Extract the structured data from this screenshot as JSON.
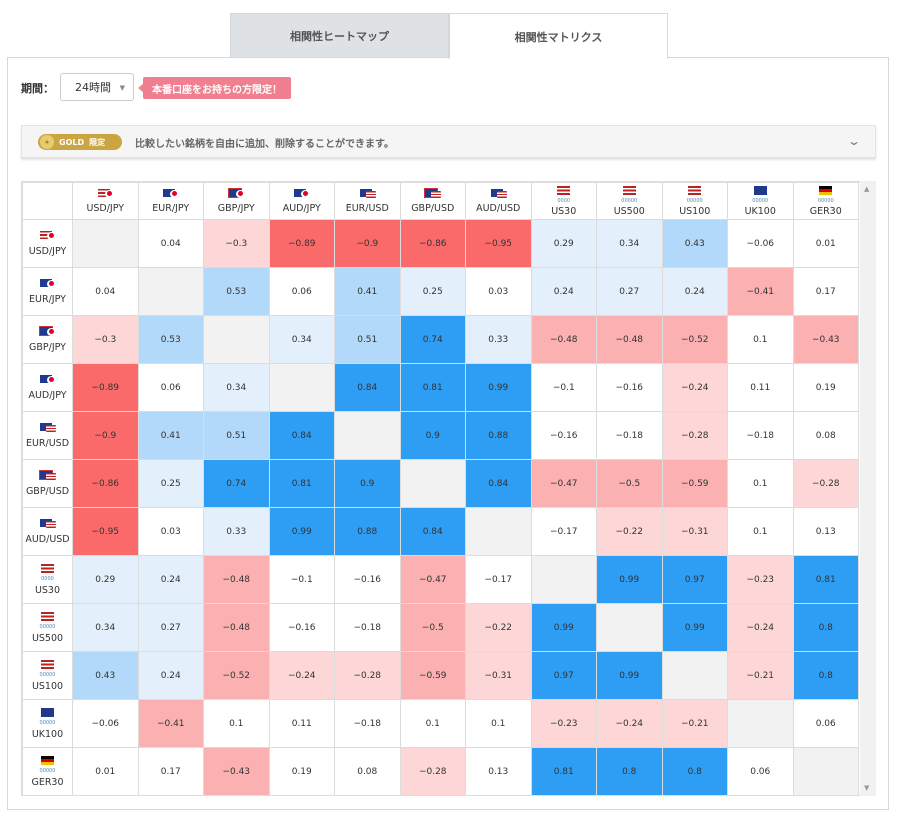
{
  "tabs": [
    {
      "label": "相関性ヒートマップ",
      "active": false
    },
    {
      "label": "相関性マトリクス",
      "active": true
    }
  ],
  "period": {
    "label": "期間：",
    "selected": "24時間"
  },
  "badge": "本番口座をお持ちの方限定！",
  "gold": {
    "pill": "GOLD",
    "pill_sub": "限定",
    "description": "比較したい銘柄を自由に追加、削除することができます。"
  },
  "colors": {
    "strong_neg": "#fa6a6a",
    "mid_neg": "#fbb1b1",
    "weak_neg": "#fdd7d7",
    "weak_pos": "#e3f0fc",
    "mid_pos": "#b2d9f9",
    "strong_pos": "#2e9ef5",
    "diag": "#f2f2f2"
  },
  "chart_data": {
    "type": "heatmap",
    "symbols": [
      "USD/JPY",
      "EUR/JPY",
      "GBP/JPY",
      "AUD/JPY",
      "EUR/USD",
      "GBP/USD",
      "AUD/USD",
      "US30",
      "US500",
      "US100",
      "UK100",
      "GER30"
    ],
    "index_sublabels": [
      "",
      "",
      "",
      "",
      "",
      "",
      "",
      "0000",
      "00000",
      "00000",
      "00000",
      "00000"
    ],
    "matrix": [
      [
        null,
        0.04,
        -0.3,
        -0.89,
        -0.9,
        -0.86,
        -0.95,
        0.29,
        0.34,
        0.43,
        -0.06,
        0.01
      ],
      [
        0.04,
        null,
        0.53,
        0.06,
        0.41,
        0.25,
        0.03,
        0.24,
        0.27,
        0.24,
        -0.41,
        0.17
      ],
      [
        -0.3,
        0.53,
        null,
        0.34,
        0.51,
        0.74,
        0.33,
        -0.48,
        -0.48,
        -0.52,
        0.1,
        -0.43
      ],
      [
        -0.89,
        0.06,
        0.34,
        null,
        0.84,
        0.81,
        0.99,
        -0.1,
        -0.16,
        -0.24,
        0.11,
        0.19
      ],
      [
        -0.9,
        0.41,
        0.51,
        0.84,
        null,
        0.9,
        0.88,
        -0.16,
        -0.18,
        -0.28,
        -0.18,
        0.08
      ],
      [
        -0.86,
        0.25,
        0.74,
        0.81,
        0.9,
        null,
        0.84,
        -0.47,
        -0.5,
        -0.59,
        0.1,
        -0.28
      ],
      [
        -0.95,
        0.03,
        0.33,
        0.99,
        0.88,
        0.84,
        null,
        -0.17,
        -0.22,
        -0.31,
        0.1,
        0.13
      ],
      [
        0.29,
        0.24,
        -0.48,
        -0.1,
        -0.16,
        -0.47,
        -0.17,
        null,
        0.99,
        0.97,
        -0.23,
        0.81
      ],
      [
        0.34,
        0.27,
        -0.48,
        -0.16,
        -0.18,
        -0.5,
        -0.22,
        0.99,
        null,
        0.99,
        -0.24,
        0.8
      ],
      [
        0.43,
        0.24,
        -0.52,
        -0.24,
        -0.28,
        -0.59,
        -0.31,
        0.97,
        0.99,
        null,
        -0.21,
        0.8
      ],
      [
        -0.06,
        -0.41,
        0.1,
        0.11,
        -0.18,
        0.1,
        0.1,
        -0.23,
        -0.24,
        -0.21,
        null,
        0.06
      ],
      [
        0.01,
        0.17,
        -0.43,
        0.19,
        0.08,
        -0.28,
        0.13,
        0.81,
        0.8,
        0.8,
        0.06,
        null
      ]
    ],
    "flags": [
      [
        "us",
        "jp"
      ],
      [
        "eu",
        "jp"
      ],
      [
        "gb",
        "jp"
      ],
      [
        "au",
        "jp"
      ],
      [
        "eu",
        "us"
      ],
      [
        "gb",
        "us"
      ],
      [
        "au",
        "us"
      ],
      [
        "us"
      ],
      [
        "us"
      ],
      [
        "us"
      ],
      [
        "gb"
      ],
      [
        "de"
      ]
    ]
  }
}
